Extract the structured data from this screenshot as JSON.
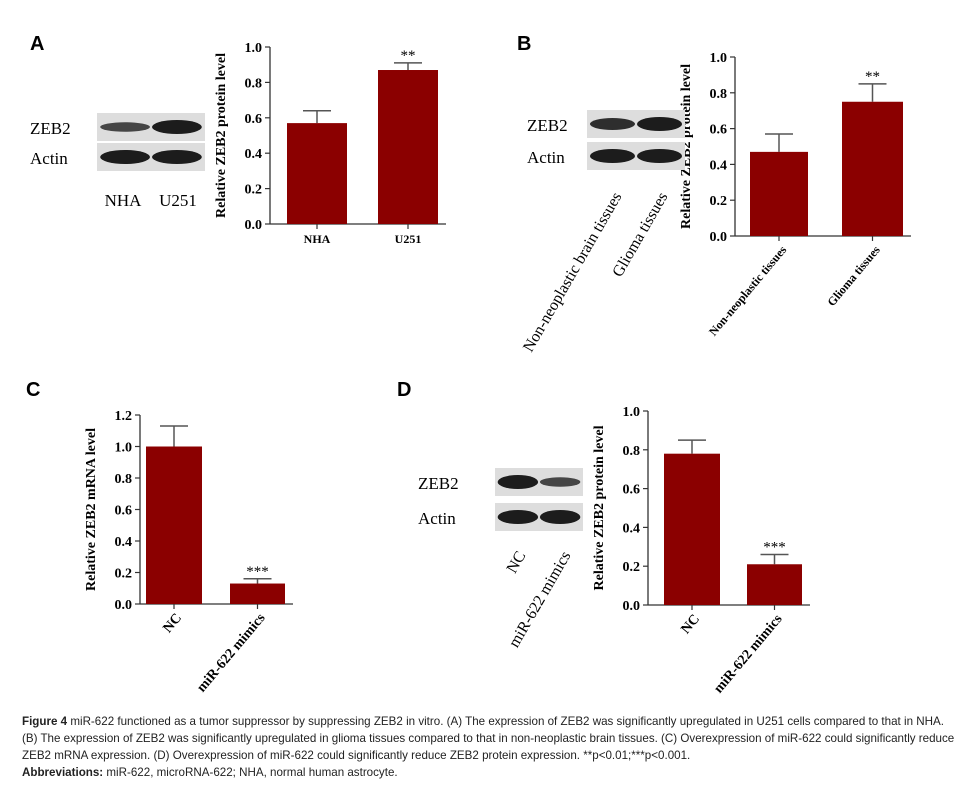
{
  "panels": [
    "A",
    "B",
    "C",
    "D"
  ],
  "blots": {
    "A": {
      "rows": [
        "ZEB2",
        "Actin"
      ],
      "lanes": [
        "NHA",
        "U251"
      ]
    },
    "B": {
      "rows": [
        "ZEB2",
        "Actin"
      ],
      "lanes": [
        "Non-neoplastic brain tissues",
        "Glioma tissues"
      ]
    },
    "D": {
      "rows": [
        "ZEB2",
        "Actin"
      ],
      "lanes": [
        "NC",
        "miR-622 mimics"
      ]
    }
  },
  "chart_data": [
    {
      "panel": "A",
      "type": "bar",
      "categories": [
        "NHA",
        "U251"
      ],
      "values": [
        0.57,
        0.87
      ],
      "errors": [
        0.07,
        0.04
      ],
      "annotations": [
        "",
        "**"
      ],
      "ylabel": "Relative ZEB2 protein level",
      "ylim": [
        0,
        1.0
      ],
      "yticks": [
        "0.0",
        "0.2",
        "0.4",
        "0.6",
        "0.8",
        "1.0"
      ],
      "color": "#8b0000"
    },
    {
      "panel": "B",
      "type": "bar",
      "categories": [
        "Non-neoplastic tissues",
        "Glioma tissues"
      ],
      "values": [
        0.47,
        0.75
      ],
      "errors": [
        0.1,
        0.1
      ],
      "annotations": [
        "",
        "**"
      ],
      "ylabel": "Relative ZEB2 protein level",
      "ylim": [
        0,
        1.0
      ],
      "yticks": [
        "0.0",
        "0.2",
        "0.4",
        "0.6",
        "0.8",
        "1.0"
      ],
      "color": "#8b0000"
    },
    {
      "panel": "C",
      "type": "bar",
      "categories": [
        "NC",
        "miR-622 mimics"
      ],
      "values": [
        1.0,
        0.13
      ],
      "errors": [
        0.13,
        0.03
      ],
      "annotations": [
        "",
        "***"
      ],
      "ylabel": "Relative ZEB2 mRNA level",
      "ylim": [
        0,
        1.2
      ],
      "yticks": [
        "0.0",
        "0.2",
        "0.4",
        "0.6",
        "0.8",
        "1.0",
        "1.2"
      ],
      "color": "#8b0000"
    },
    {
      "panel": "D",
      "type": "bar",
      "categories": [
        "NC",
        "miR-622 mimics"
      ],
      "values": [
        0.78,
        0.21
      ],
      "errors": [
        0.07,
        0.05
      ],
      "annotations": [
        "",
        "***"
      ],
      "ylabel": "Relative ZEB2 protein level",
      "ylim": [
        0,
        1.0
      ],
      "yticks": [
        "0.0",
        "0.2",
        "0.4",
        "0.6",
        "0.8",
        "1.0"
      ],
      "color": "#8b0000"
    }
  ],
  "caption": {
    "label": "Figure 4",
    "text": " miR-622 functioned as a tumor suppressor by suppressing ZEB2 in vitro. (A) The expression of ZEB2 was significantly upregulated in U251 cells compared to that in NHA. (B) The expression of ZEB2 was significantly upregulated in glioma tissues compared to that in non-neoplastic brain tissues. (C) Overexpression of miR-622 could significantly reduce ZEB2 mRNA expression. (D) Overexpression of miR-622 could significantly reduce ZEB2 protein expression. **p<0.01;***p<0.001.",
    "abbrev_label": "Abbreviations:",
    "abbrev_text": " miR-622, microRNA-622; NHA, normal human astrocyte."
  }
}
